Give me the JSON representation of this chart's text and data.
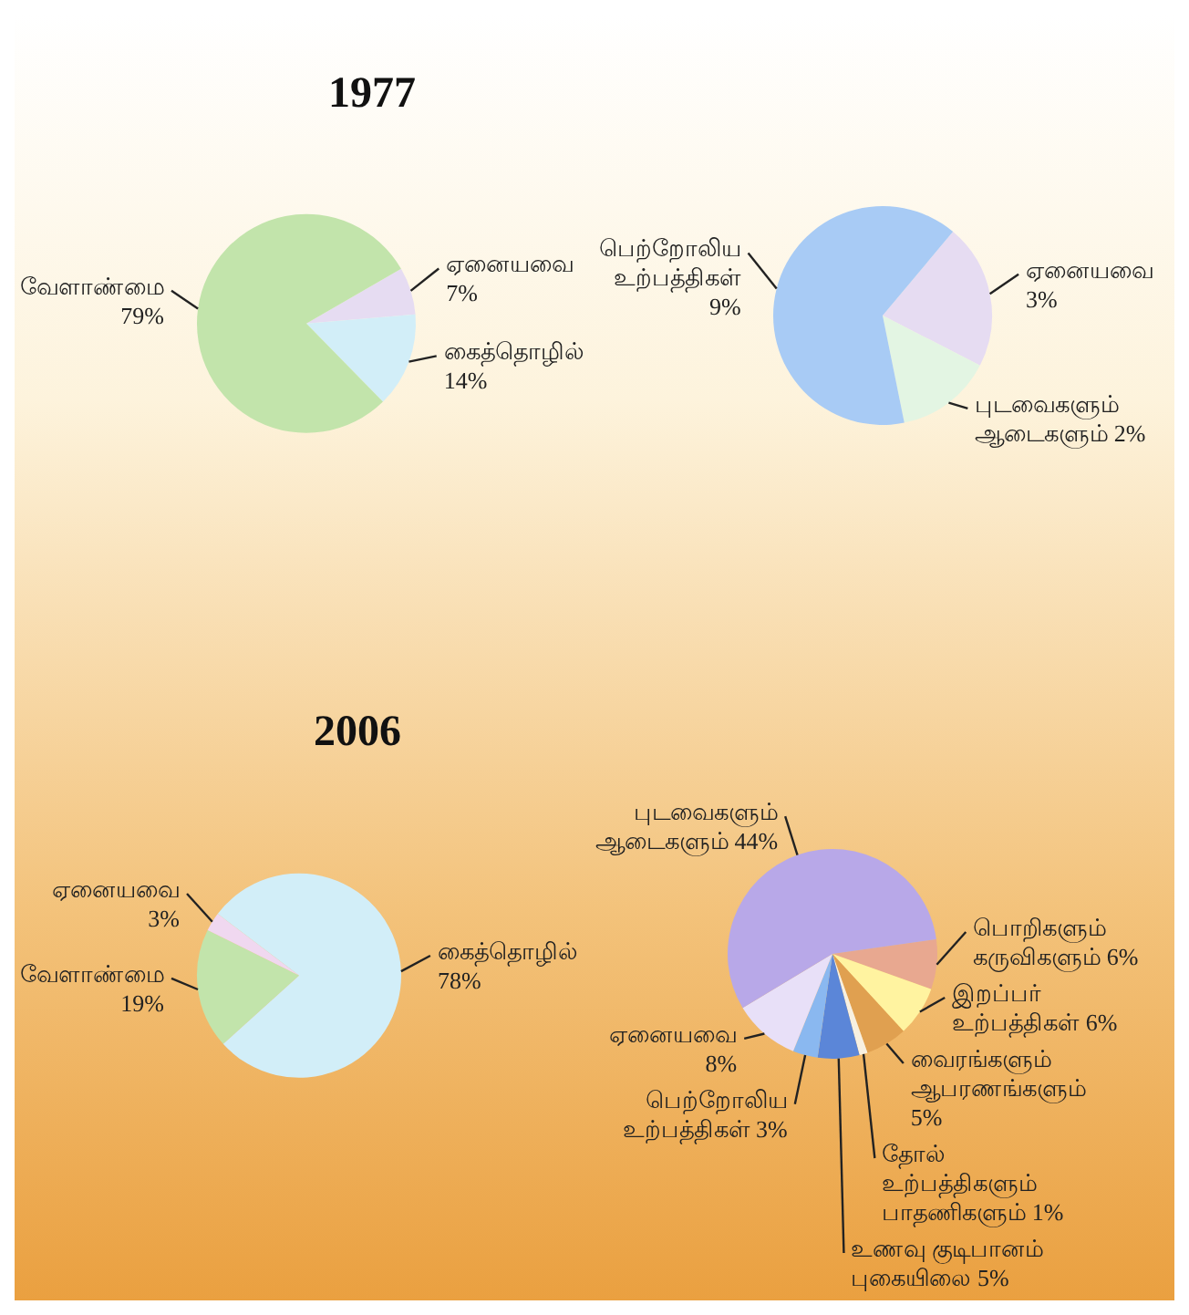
{
  "chart_data": [
    {
      "type": "pie",
      "title": "1977",
      "categories": [
        "ஏனையவை",
        "கைத்தொழில்",
        "வேளாண்மை"
      ],
      "values": [
        7,
        14,
        79
      ],
      "value_labels": [
        "7%",
        "14%",
        "79%"
      ],
      "colors": [
        "#e6dcf2",
        "#d2eef8",
        "#c2e4ab"
      ]
    },
    {
      "type": "pie",
      "categories": [
        "ஏனையவை",
        "புடவைகளும் ஆடைகளும்",
        "பெற்றோலிய உற்பத்திகள்"
      ],
      "values": [
        3,
        2,
        9
      ],
      "value_labels": [
        "3%",
        "2%",
        "9%"
      ],
      "colors": [
        "#e6dcf2",
        "#e3f5e3",
        "#a8cbf5"
      ]
    },
    {
      "type": "pie",
      "title": "2006",
      "categories": [
        "வேளாண்மை",
        "ஏனையவை",
        "கைத்தொழில்"
      ],
      "values": [
        19,
        3,
        78
      ],
      "value_labels": [
        "19%",
        "3%",
        "78%"
      ],
      "colors": [
        "#c2e4ab",
        "#f0d8f0",
        "#d2eef8"
      ]
    },
    {
      "type": "pie",
      "categories": [
        "பொறிகளும் கருவிகளும்",
        "இறப்பர் உற்பத்திகள்",
        "வைரங்களும் ஆபரணங்களும்",
        "தோல் உற்பத்திகளும் பாதணிகளும்",
        "உணவு குடிபானம் புகையிலை",
        "பெற்றோலிய உற்பத்திகள்",
        "ஏனையவை",
        "புடவைகளும் ஆடைகளும்"
      ],
      "values": [
        6,
        6,
        5,
        1,
        5,
        3,
        8,
        44
      ],
      "value_labels": [
        "6%",
        "6%",
        "5%",
        "1%",
        "5%",
        "3%",
        "8%",
        "44%"
      ],
      "colors": [
        "#e8a890",
        "#fff3a0",
        "#e0a050",
        "#f8f0e0",
        "#5b86d8",
        "#8ab8f0",
        "#e8e0f8",
        "#b8a8e8"
      ]
    }
  ]
}
